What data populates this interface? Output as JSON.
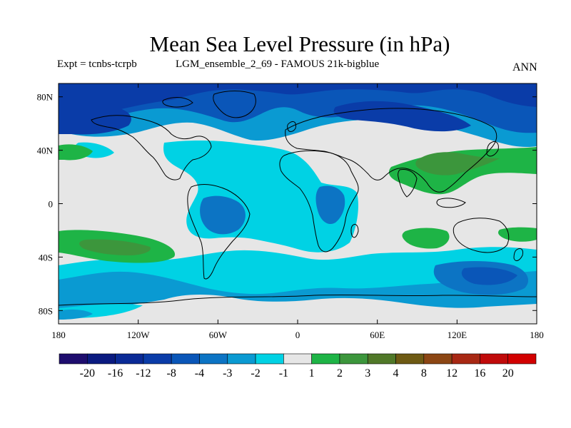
{
  "title": "Mean Sea Level Pressure (in hPa)",
  "subtitle_left": "Expt = tcnbs-tcrpb",
  "subtitle_mid": "LGM_ensemble_2_69 - FAMOUS 21k-bigblue",
  "subtitle_right": "ANN",
  "map": {
    "lon_range": [
      -180,
      180
    ],
    "lat_range": [
      -90,
      90
    ],
    "x_ticks": [
      {
        "lon": -180,
        "label": "180"
      },
      {
        "lon": -120,
        "label": "120W"
      },
      {
        "lon": -60,
        "label": "60W"
      },
      {
        "lon": 0,
        "label": "0"
      },
      {
        "lon": 60,
        "label": "60E"
      },
      {
        "lon": 120,
        "label": "120E"
      },
      {
        "lon": 180,
        "label": "180"
      }
    ],
    "y_ticks": [
      {
        "lat": 80,
        "label": "80N"
      },
      {
        "lat": 40,
        "label": "40N"
      },
      {
        "lat": 0,
        "label": "0"
      },
      {
        "lat": -40,
        "label": "40S"
      },
      {
        "lat": -80,
        "label": "80S"
      }
    ],
    "background_color": "#e6e6e6"
  },
  "colorbar": {
    "labels": [
      "-20",
      "-16",
      "-12",
      "-8",
      "-4",
      "-3",
      "-2",
      "-1",
      "1",
      "2",
      "3",
      "4",
      "8",
      "12",
      "16",
      "20"
    ],
    "colors": [
      "#1e0d6e",
      "#0a1a80",
      "#0a2a96",
      "#0a3ca8",
      "#0a56b8",
      "#0c74c4",
      "#0a9ad2",
      "#00d2e4",
      "#e6e6e6",
      "#1eb446",
      "#3c963c",
      "#507828",
      "#6e5a14",
      "#8c4614",
      "#a82814",
      "#c00a0a",
      "#d20000"
    ]
  }
}
